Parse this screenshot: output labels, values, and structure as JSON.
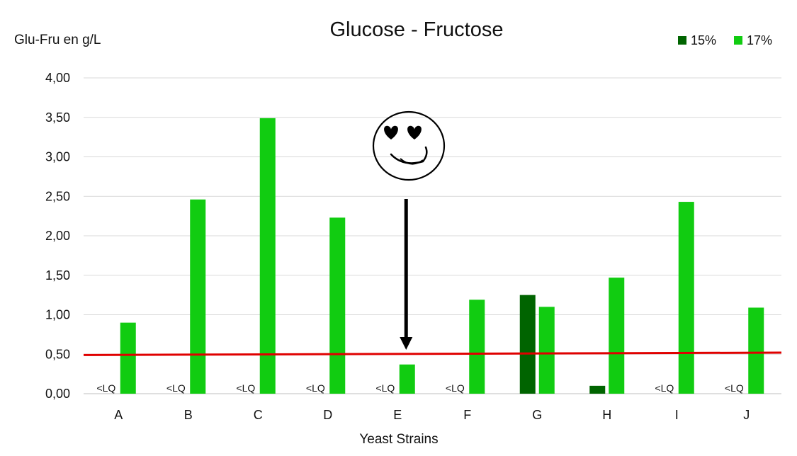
{
  "chart_data": {
    "type": "bar",
    "title": "Glucose - Fructose",
    "ylabel": "Glu-Fru en g/L",
    "xlabel": "Yeast Strains",
    "categories": [
      "A",
      "B",
      "C",
      "D",
      "E",
      "F",
      "G",
      "H",
      "I",
      "J"
    ],
    "series": [
      {
        "name": "15%",
        "color": "#006400",
        "values": [
          0,
          0,
          0,
          0,
          0,
          0,
          1.25,
          0.1,
          0,
          0
        ]
      },
      {
        "name": "17%",
        "color": "#11cc11",
        "values": [
          0.9,
          2.46,
          3.49,
          2.23,
          0.37,
          1.19,
          1.1,
          1.47,
          2.43,
          1.09
        ]
      }
    ],
    "below_lq_label": "<LQ",
    "below_lq": [
      true,
      true,
      true,
      true,
      true,
      true,
      false,
      false,
      true,
      true
    ],
    "ylim": [
      0,
      4
    ],
    "yticks": [
      "0,00",
      "0,50",
      "1,00",
      "1,50",
      "2,00",
      "2,50",
      "3,00",
      "3,50",
      "4,00"
    ],
    "threshold_line": {
      "y_start": 0.49,
      "y_end": 0.52,
      "color": "#e00000"
    },
    "annotation": {
      "type": "arrow-with-smiley",
      "target_category": "E",
      "icon": "heart-eyes-smiley-icon"
    },
    "grid": true,
    "legend_position": "top-right"
  }
}
